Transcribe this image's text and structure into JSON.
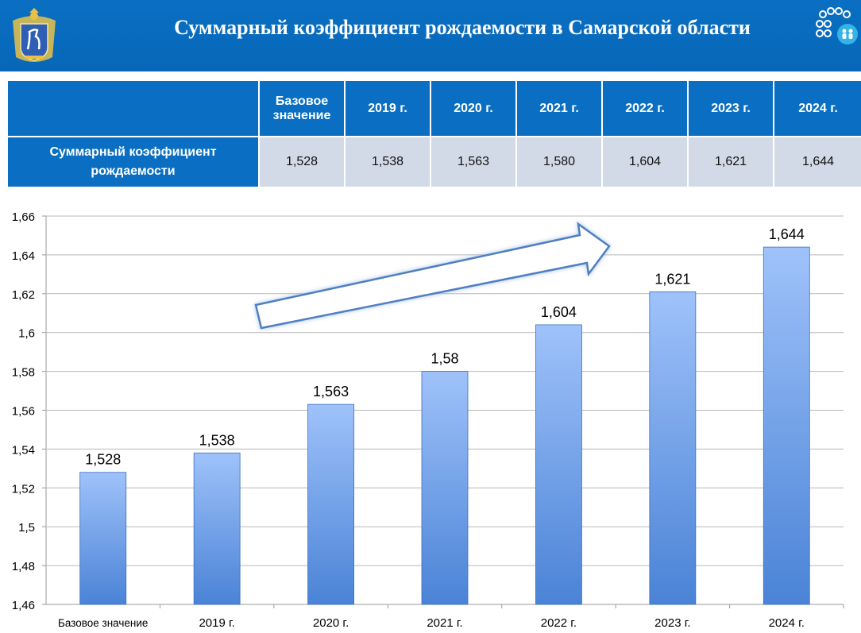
{
  "header": {
    "title": "Суммарный коэффициент рождаемости в Самарской области",
    "emblem_icon": "samara-coat-of-arms-icon",
    "logo_icon": "demography-logo-icon",
    "colors": {
      "header_bg": "#0a6fc2",
      "row_label_bg": "#0a6fc2",
      "cell_bg": "#d1dae6"
    }
  },
  "table": {
    "columns": [
      "Базовое значение",
      "2019 г.",
      "2020 г.",
      "2021 г.",
      "2022 г.",
      "2023 г.",
      "2024 г."
    ],
    "row_label": "Суммарный коэффициент рождаемости",
    "values": [
      "1,528",
      "1,538",
      "1,563",
      "1,580",
      "1,604",
      "1,621",
      "1,644"
    ]
  },
  "chart_data": {
    "type": "bar",
    "title": "",
    "xlabel": "",
    "ylabel": "",
    "categories": [
      "Базовое значение",
      "2019 г.",
      "2020 г.",
      "2021 г.",
      "2022 г.",
      "2023 г.",
      "2024 г."
    ],
    "values": [
      1.528,
      1.538,
      1.563,
      1.58,
      1.604,
      1.621,
      1.644
    ],
    "data_labels": [
      "1,528",
      "1,538",
      "1,563",
      "1,58",
      "1,604",
      "1,621",
      "1,644"
    ],
    "ylim": [
      1.46,
      1.66
    ],
    "yticks": [
      1.46,
      1.48,
      1.5,
      1.52,
      1.54,
      1.56,
      1.58,
      1.6,
      1.62,
      1.64,
      1.66
    ],
    "ytick_labels": [
      "1,46",
      "1,48",
      "1,5",
      "1,52",
      "1,54",
      "1,56",
      "1,58",
      "1,6",
      "1,62",
      "1,64",
      "1,66"
    ],
    "grid": true,
    "legend": "none",
    "annotation": "upward trend arrow",
    "bar_color": "#8db6f5"
  }
}
